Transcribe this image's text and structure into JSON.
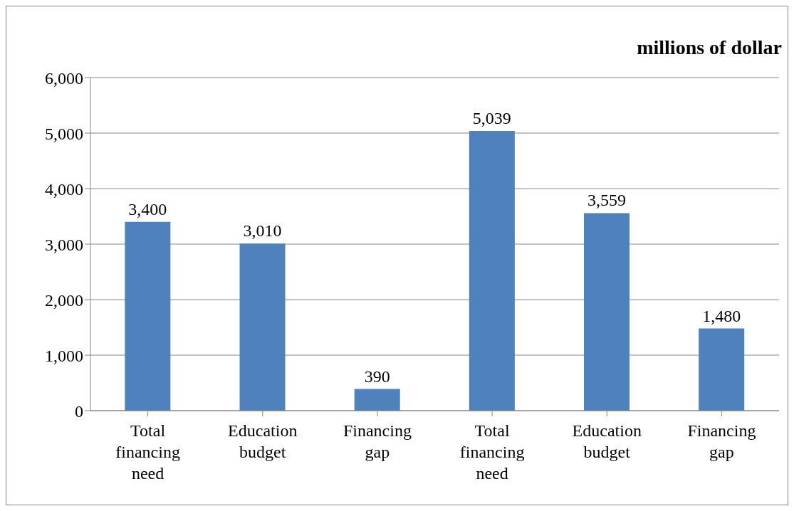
{
  "chart_data": {
    "type": "bar",
    "title": "millions of dollar",
    "categories": [
      "Total financing need",
      "Education budget",
      "Financing gap",
      "Total financing need",
      "Education budget",
      "Financing gap"
    ],
    "values": [
      3400,
      3010,
      390,
      5039,
      3559,
      1480
    ],
    "color": "#4f81bd",
    "ylim": [
      0,
      6000
    ],
    "yticks": [
      {
        "value": 0,
        "label": "0"
      },
      {
        "value": 1000,
        "label": "1,000"
      },
      {
        "value": 2000,
        "label": "2,000"
      },
      {
        "value": 3000,
        "label": "3,000"
      },
      {
        "value": 4000,
        "label": "4,000"
      },
      {
        "value": 5000,
        "label": "5,000"
      },
      {
        "value": 6000,
        "label": "6,000"
      }
    ],
    "grid": "y",
    "value_labels": [
      "3,400",
      "3,010",
      "390",
      "5,039",
      "3,559",
      "1,480"
    ],
    "legend": false
  }
}
